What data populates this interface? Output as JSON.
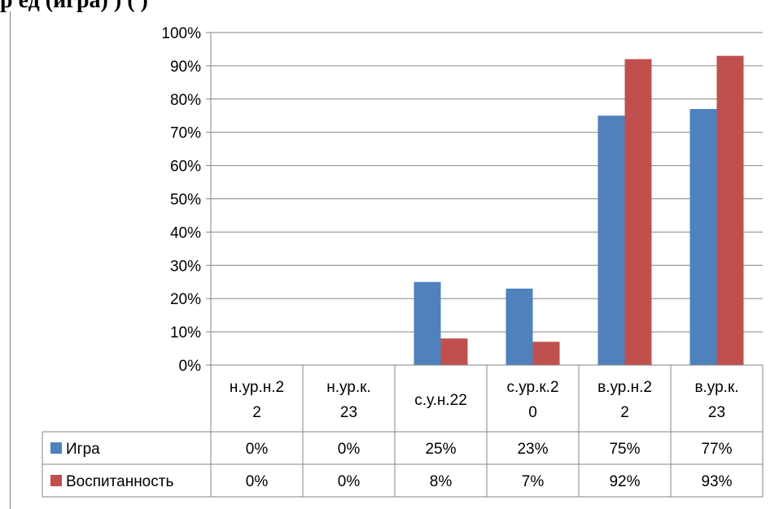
{
  "header": {
    "text": "р              ед                 (игра)                           ) (         )"
  },
  "chart_data": {
    "type": "bar",
    "categories": [
      [
        "н.ур.н.2",
        "2"
      ],
      [
        "н.ур.к.",
        "23"
      ],
      [
        "с.у.н.22"
      ],
      [
        "с.ур.к.2",
        "0"
      ],
      [
        "в.ур.н.2",
        "2"
      ],
      [
        "в.ур.к.",
        "23"
      ]
    ],
    "series": [
      {
        "name": "Игра",
        "values": [
          0,
          0,
          25,
          23,
          75,
          77
        ],
        "labels": [
          "0%",
          "0%",
          "25%",
          "23%",
          "75%",
          "77%"
        ],
        "color": "#4f81bd"
      },
      {
        "name": "Воспитанность",
        "values": [
          0,
          0,
          8,
          7,
          92,
          93
        ],
        "labels": [
          "0%",
          "0%",
          "8%",
          "7%",
          "92%",
          "93%"
        ],
        "color": "#c0504d"
      }
    ],
    "ylim": [
      0,
      100
    ],
    "yticks": [
      "0%",
      "10%",
      "20%",
      "30%",
      "40%",
      "50%",
      "60%",
      "70%",
      "80%",
      "90%",
      "100%"
    ],
    "grid": true,
    "legend": "data-table",
    "title": "",
    "xlabel": "",
    "ylabel": ""
  }
}
